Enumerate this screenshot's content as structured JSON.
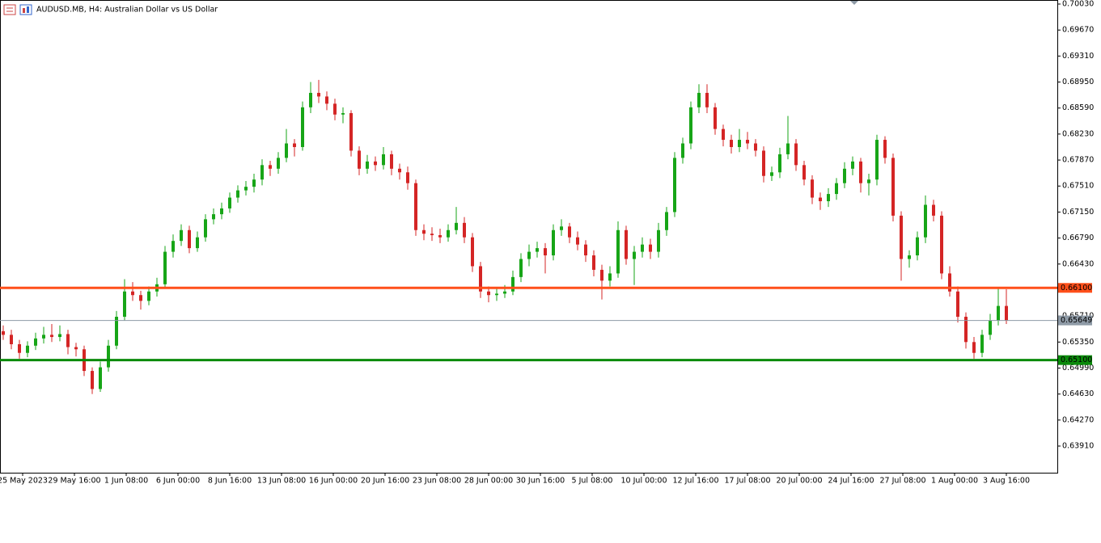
{
  "chart_data": {
    "type": "candlestick",
    "title": "AUDUSD.MB, H4:  Australian Dollar vs US Dollar",
    "up_color": "#17a517",
    "down_color": "#d42525",
    "ylim": [
      0.63541,
      0.70086
    ],
    "yticks": [
      {
        "value": 0.7003,
        "label": "0.70030"
      },
      {
        "value": 0.6967,
        "label": "0.69670"
      },
      {
        "value": 0.6931,
        "label": "0.69310"
      },
      {
        "value": 0.6895,
        "label": "0.68950"
      },
      {
        "value": 0.6859,
        "label": "0.68590"
      },
      {
        "value": 0.6823,
        "label": "0.68230"
      },
      {
        "value": 0.6787,
        "label": "0.67870"
      },
      {
        "value": 0.6751,
        "label": "0.67510"
      },
      {
        "value": 0.6715,
        "label": "0.67150"
      },
      {
        "value": 0.6679,
        "label": "0.66790"
      },
      {
        "value": 0.6643,
        "label": "0.66430"
      },
      {
        "value": 0.6571,
        "label": "0.65710"
      },
      {
        "value": 0.6535,
        "label": "0.65350"
      },
      {
        "value": 0.6499,
        "label": "0.64990"
      },
      {
        "value": 0.6463,
        "label": "0.64630"
      },
      {
        "value": 0.6427,
        "label": "0.64270"
      },
      {
        "value": 0.6391,
        "label": "0.63910"
      }
    ],
    "x_labels": [
      "25 May 2023",
      "29 May 16:00",
      "1 Jun 08:00",
      "6 Jun 00:00",
      "8 Jun 16:00",
      "13 Jun 08:00",
      "16 Jun 00:00",
      "20 Jun 16:00",
      "23 Jun 08:00",
      "28 Jun 00:00",
      "30 Jun 16:00",
      "5 Jul 08:00",
      "10 Jul 00:00",
      "12 Jul 16:00",
      "17 Jul 08:00",
      "20 Jul 00:00",
      "24 Jul 16:00",
      "27 Jul 08:00",
      "1 Aug 00:00",
      "3 Aug 16:00"
    ],
    "levels": [
      {
        "value": 0.661,
        "label": "0.66100",
        "color": "#ff4f1a"
      },
      {
        "value": 0.651,
        "label": "0.65100",
        "color": "#0a8a0a"
      },
      {
        "value": 0.65649,
        "label": "0.65649",
        "color": "#8e9aa6"
      }
    ],
    "candles": [
      [
        0.655,
        0.6558,
        0.6538,
        0.6545
      ],
      [
        0.6545,
        0.6552,
        0.6525,
        0.6532
      ],
      [
        0.6532,
        0.6538,
        0.6512,
        0.652
      ],
      [
        0.652,
        0.6536,
        0.6514,
        0.653
      ],
      [
        0.653,
        0.6548,
        0.6524,
        0.654
      ],
      [
        0.654,
        0.6556,
        0.6533,
        0.6545
      ],
      [
        0.6545,
        0.656,
        0.6535,
        0.6542
      ],
      [
        0.6542,
        0.6558,
        0.6536,
        0.6546
      ],
      [
        0.6546,
        0.6552,
        0.6518,
        0.6528
      ],
      [
        0.6528,
        0.6534,
        0.6515,
        0.6525
      ],
      [
        0.6525,
        0.653,
        0.6488,
        0.6495
      ],
      [
        0.6495,
        0.65,
        0.6463,
        0.647
      ],
      [
        0.647,
        0.6508,
        0.6466,
        0.65
      ],
      [
        0.65,
        0.6538,
        0.6494,
        0.653
      ],
      [
        0.653,
        0.6578,
        0.6525,
        0.657
      ],
      [
        0.657,
        0.6622,
        0.6565,
        0.6605
      ],
      [
        0.6605,
        0.6618,
        0.6592,
        0.66
      ],
      [
        0.66,
        0.6606,
        0.658,
        0.6592
      ],
      [
        0.6592,
        0.6612,
        0.6586,
        0.6605
      ],
      [
        0.6605,
        0.6624,
        0.6598,
        0.6615
      ],
      [
        0.6615,
        0.6668,
        0.661,
        0.666
      ],
      [
        0.666,
        0.6684,
        0.6652,
        0.6675
      ],
      [
        0.6675,
        0.6698,
        0.6668,
        0.669
      ],
      [
        0.669,
        0.6696,
        0.6658,
        0.6665
      ],
      [
        0.6665,
        0.6688,
        0.666,
        0.668
      ],
      [
        0.668,
        0.6712,
        0.6674,
        0.6705
      ],
      [
        0.6705,
        0.672,
        0.6698,
        0.6712
      ],
      [
        0.6712,
        0.6728,
        0.6705,
        0.672
      ],
      [
        0.672,
        0.6742,
        0.6714,
        0.6735
      ],
      [
        0.6735,
        0.6752,
        0.6728,
        0.6745
      ],
      [
        0.6745,
        0.6758,
        0.6738,
        0.675
      ],
      [
        0.675,
        0.6768,
        0.6742,
        0.676
      ],
      [
        0.676,
        0.6788,
        0.6752,
        0.678
      ],
      [
        0.678,
        0.6786,
        0.6765,
        0.6775
      ],
      [
        0.6775,
        0.6798,
        0.6768,
        0.679
      ],
      [
        0.679,
        0.683,
        0.6784,
        0.681
      ],
      [
        0.681,
        0.6816,
        0.6792,
        0.6805
      ],
      [
        0.6805,
        0.6868,
        0.68,
        0.686
      ],
      [
        0.686,
        0.6895,
        0.6852,
        0.688
      ],
      [
        0.688,
        0.6898,
        0.6866,
        0.6875
      ],
      [
        0.6875,
        0.6882,
        0.6856,
        0.6865
      ],
      [
        0.6865,
        0.6872,
        0.6842,
        0.685
      ],
      [
        0.685,
        0.686,
        0.6838,
        0.6852
      ],
      [
        0.6852,
        0.6856,
        0.6792,
        0.68
      ],
      [
        0.68,
        0.6806,
        0.6766,
        0.6775
      ],
      [
        0.6775,
        0.6794,
        0.6768,
        0.6785
      ],
      [
        0.6785,
        0.6792,
        0.6772,
        0.678
      ],
      [
        0.678,
        0.6805,
        0.6774,
        0.6795
      ],
      [
        0.6795,
        0.68,
        0.6766,
        0.6775
      ],
      [
        0.6775,
        0.6782,
        0.676,
        0.677
      ],
      [
        0.677,
        0.6778,
        0.6746,
        0.6755
      ],
      [
        0.6755,
        0.676,
        0.6682,
        0.669
      ],
      [
        0.669,
        0.6698,
        0.6676,
        0.6685
      ],
      [
        0.6685,
        0.6694,
        0.6675,
        0.6683
      ],
      [
        0.6683,
        0.6692,
        0.6672,
        0.668
      ],
      [
        0.668,
        0.6698,
        0.6674,
        0.669
      ],
      [
        0.669,
        0.6722,
        0.6684,
        0.67
      ],
      [
        0.67,
        0.6708,
        0.6672,
        0.668
      ],
      [
        0.668,
        0.6686,
        0.6632,
        0.664
      ],
      [
        0.664,
        0.6646,
        0.6596,
        0.6605
      ],
      [
        0.6605,
        0.6612,
        0.659,
        0.66
      ],
      [
        0.66,
        0.661,
        0.6592,
        0.6602
      ],
      [
        0.6602,
        0.6614,
        0.6596,
        0.6605
      ],
      [
        0.6605,
        0.6634,
        0.66,
        0.6625
      ],
      [
        0.6625,
        0.6658,
        0.6618,
        0.665
      ],
      [
        0.665,
        0.667,
        0.664,
        0.666
      ],
      [
        0.666,
        0.6674,
        0.6652,
        0.6665
      ],
      [
        0.6665,
        0.6672,
        0.663,
        0.6655
      ],
      [
        0.6655,
        0.6698,
        0.6648,
        0.669
      ],
      [
        0.669,
        0.6705,
        0.6682,
        0.6695
      ],
      [
        0.6695,
        0.67,
        0.6672,
        0.668
      ],
      [
        0.668,
        0.6688,
        0.6662,
        0.667
      ],
      [
        0.667,
        0.6676,
        0.6646,
        0.6655
      ],
      [
        0.6655,
        0.6662,
        0.6626,
        0.6635
      ],
      [
        0.6635,
        0.6642,
        0.6594,
        0.662
      ],
      [
        0.662,
        0.664,
        0.6612,
        0.663
      ],
      [
        0.663,
        0.6702,
        0.6624,
        0.669
      ],
      [
        0.669,
        0.6696,
        0.6642,
        0.665
      ],
      [
        0.665,
        0.6668,
        0.6614,
        0.666
      ],
      [
        0.666,
        0.668,
        0.6652,
        0.667
      ],
      [
        0.667,
        0.6678,
        0.665,
        0.666
      ],
      [
        0.666,
        0.67,
        0.6652,
        0.669
      ],
      [
        0.669,
        0.6722,
        0.6682,
        0.6715
      ],
      [
        0.6715,
        0.6798,
        0.6708,
        0.679
      ],
      [
        0.679,
        0.6818,
        0.6782,
        0.681
      ],
      [
        0.681,
        0.6868,
        0.6802,
        0.686
      ],
      [
        0.686,
        0.6892,
        0.6852,
        0.688
      ],
      [
        0.688,
        0.6892,
        0.6852,
        0.686
      ],
      [
        0.686,
        0.6866,
        0.6822,
        0.683
      ],
      [
        0.683,
        0.6836,
        0.6806,
        0.6815
      ],
      [
        0.6815,
        0.6822,
        0.6796,
        0.6805
      ],
      [
        0.6805,
        0.683,
        0.6798,
        0.6815
      ],
      [
        0.6815,
        0.6826,
        0.6802,
        0.681
      ],
      [
        0.681,
        0.6816,
        0.6792,
        0.68
      ],
      [
        0.68,
        0.6806,
        0.6756,
        0.6765
      ],
      [
        0.6765,
        0.6778,
        0.6758,
        0.677
      ],
      [
        0.677,
        0.6804,
        0.6762,
        0.6795
      ],
      [
        0.6795,
        0.6848,
        0.6788,
        0.681
      ],
      [
        0.681,
        0.6816,
        0.6772,
        0.678
      ],
      [
        0.678,
        0.6786,
        0.6752,
        0.676
      ],
      [
        0.676,
        0.6766,
        0.6726,
        0.6735
      ],
      [
        0.6735,
        0.6742,
        0.6718,
        0.673
      ],
      [
        0.673,
        0.6748,
        0.6722,
        0.674
      ],
      [
        0.674,
        0.6762,
        0.6732,
        0.6755
      ],
      [
        0.6755,
        0.6784,
        0.6748,
        0.6775
      ],
      [
        0.6775,
        0.6792,
        0.6766,
        0.6785
      ],
      [
        0.6785,
        0.679,
        0.6742,
        0.6755
      ],
      [
        0.6755,
        0.6768,
        0.6738,
        0.676
      ],
      [
        0.676,
        0.6822,
        0.6752,
        0.6815
      ],
      [
        0.6815,
        0.682,
        0.6782,
        0.679
      ],
      [
        0.679,
        0.6796,
        0.6702,
        0.671
      ],
      [
        0.671,
        0.6716,
        0.662,
        0.665
      ],
      [
        0.665,
        0.6662,
        0.6638,
        0.6655
      ],
      [
        0.6655,
        0.6688,
        0.6648,
        0.668
      ],
      [
        0.668,
        0.6738,
        0.6672,
        0.6725
      ],
      [
        0.6725,
        0.6732,
        0.6702,
        0.671
      ],
      [
        0.671,
        0.6716,
        0.6622,
        0.663
      ],
      [
        0.663,
        0.664,
        0.6598,
        0.6605
      ],
      [
        0.6605,
        0.6612,
        0.6562,
        0.657
      ],
      [
        0.657,
        0.6576,
        0.6526,
        0.6535
      ],
      [
        0.6535,
        0.6542,
        0.6512,
        0.652
      ],
      [
        0.652,
        0.6552,
        0.6514,
        0.6545
      ],
      [
        0.6545,
        0.6574,
        0.6538,
        0.6565
      ],
      [
        0.6565,
        0.661,
        0.6558,
        0.6585
      ],
      [
        0.6585,
        0.6608,
        0.656,
        0.65649
      ]
    ]
  }
}
